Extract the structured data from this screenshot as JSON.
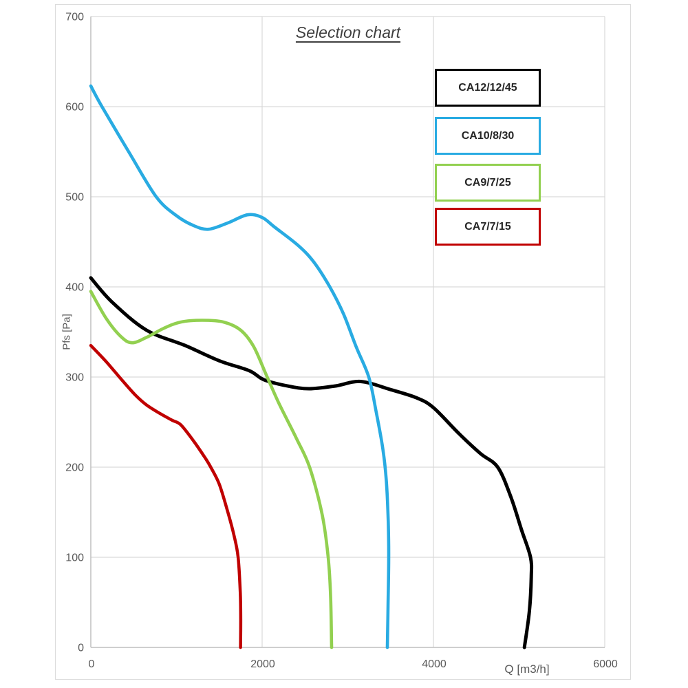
{
  "title": "Selection chart",
  "axes": {
    "x": {
      "label": "Q [m3/h]",
      "min": 0,
      "max": 6000,
      "ticks": [
        0,
        2000,
        4000,
        6000
      ]
    },
    "y": {
      "label": "Pfs [Pa]",
      "min": 0,
      "max": 700,
      "ticks": [
        0,
        100,
        200,
        300,
        400,
        500,
        600,
        700
      ]
    }
  },
  "colors": {
    "gridline": "#d9d9d9",
    "axis_line": "#bfbfbf",
    "tick_text": "#595959",
    "title_text": "#3f3f3f"
  },
  "chart_data": {
    "type": "line",
    "title": "Selection chart",
    "xlabel": "Q [m3/h]",
    "ylabel": "Pfs [Pa]",
    "xlim": [
      0,
      6000
    ],
    "ylim": [
      0,
      700
    ],
    "grid": true,
    "legend_position": "upper right",
    "series": [
      {
        "name": "CA12/12/45",
        "color": "#000000",
        "stroke_width": 5,
        "points": [
          [
            0,
            410
          ],
          [
            250,
            383
          ],
          [
            650,
            352
          ],
          [
            1100,
            335
          ],
          [
            1500,
            318
          ],
          [
            1850,
            307
          ],
          [
            2020,
            297
          ],
          [
            2300,
            290
          ],
          [
            2550,
            287
          ],
          [
            2850,
            290
          ],
          [
            3150,
            295
          ],
          [
            3500,
            286
          ],
          [
            3800,
            277
          ],
          [
            4000,
            266
          ],
          [
            4300,
            237
          ],
          [
            4550,
            215
          ],
          [
            4750,
            200
          ],
          [
            4900,
            168
          ],
          [
            5030,
            130
          ],
          [
            5133,
            100
          ],
          [
            5142,
            78
          ],
          [
            5120,
            40
          ],
          [
            5062,
            0
          ]
        ]
      },
      {
        "name": "CA10/8/30",
        "color": "#29abe2",
        "stroke_width": 4.6,
        "points": [
          [
            0,
            623
          ],
          [
            130,
            600
          ],
          [
            442,
            550
          ],
          [
            763,
            500
          ],
          [
            1000,
            479
          ],
          [
            1200,
            468
          ],
          [
            1375,
            464
          ],
          [
            1600,
            471
          ],
          [
            1830,
            480
          ],
          [
            2000,
            477
          ],
          [
            2150,
            466
          ],
          [
            2420,
            446
          ],
          [
            2600,
            428
          ],
          [
            2790,
            400
          ],
          [
            2950,
            370
          ],
          [
            3100,
            333
          ],
          [
            3245,
            300
          ],
          [
            3330,
            262
          ],
          [
            3410,
            220
          ],
          [
            3450,
            185
          ],
          [
            3472,
            140
          ],
          [
            3478,
            100
          ],
          [
            3470,
            45
          ],
          [
            3462,
            0
          ]
        ]
      },
      {
        "name": "CA9/7/25",
        "color": "#92d050",
        "stroke_width": 4.6,
        "points": [
          [
            0,
            395
          ],
          [
            180,
            365
          ],
          [
            350,
            345
          ],
          [
            480,
            338
          ],
          [
            650,
            344
          ],
          [
            850,
            354
          ],
          [
            1050,
            361
          ],
          [
            1300,
            363
          ],
          [
            1550,
            361
          ],
          [
            1750,
            352
          ],
          [
            1900,
            334
          ],
          [
            2050,
            302
          ],
          [
            2200,
            270
          ],
          [
            2400,
            232
          ],
          [
            2554,
            200
          ],
          [
            2700,
            148
          ],
          [
            2771,
            100
          ],
          [
            2800,
            55
          ],
          [
            2811,
            0
          ]
        ]
      },
      {
        "name": "CA7/7/15",
        "color": "#c00000",
        "stroke_width": 4.5,
        "points": [
          [
            0,
            335
          ],
          [
            180,
            317
          ],
          [
            360,
            297
          ],
          [
            520,
            280
          ],
          [
            650,
            269
          ],
          [
            800,
            260
          ],
          [
            950,
            252
          ],
          [
            1050,
            247
          ],
          [
            1200,
            229
          ],
          [
            1330,
            211
          ],
          [
            1400,
            200
          ],
          [
            1500,
            181
          ],
          [
            1600,
            150
          ],
          [
            1670,
            125
          ],
          [
            1720,
            100
          ],
          [
            1745,
            60
          ],
          [
            1750,
            30
          ],
          [
            1748,
            0
          ]
        ]
      }
    ]
  }
}
